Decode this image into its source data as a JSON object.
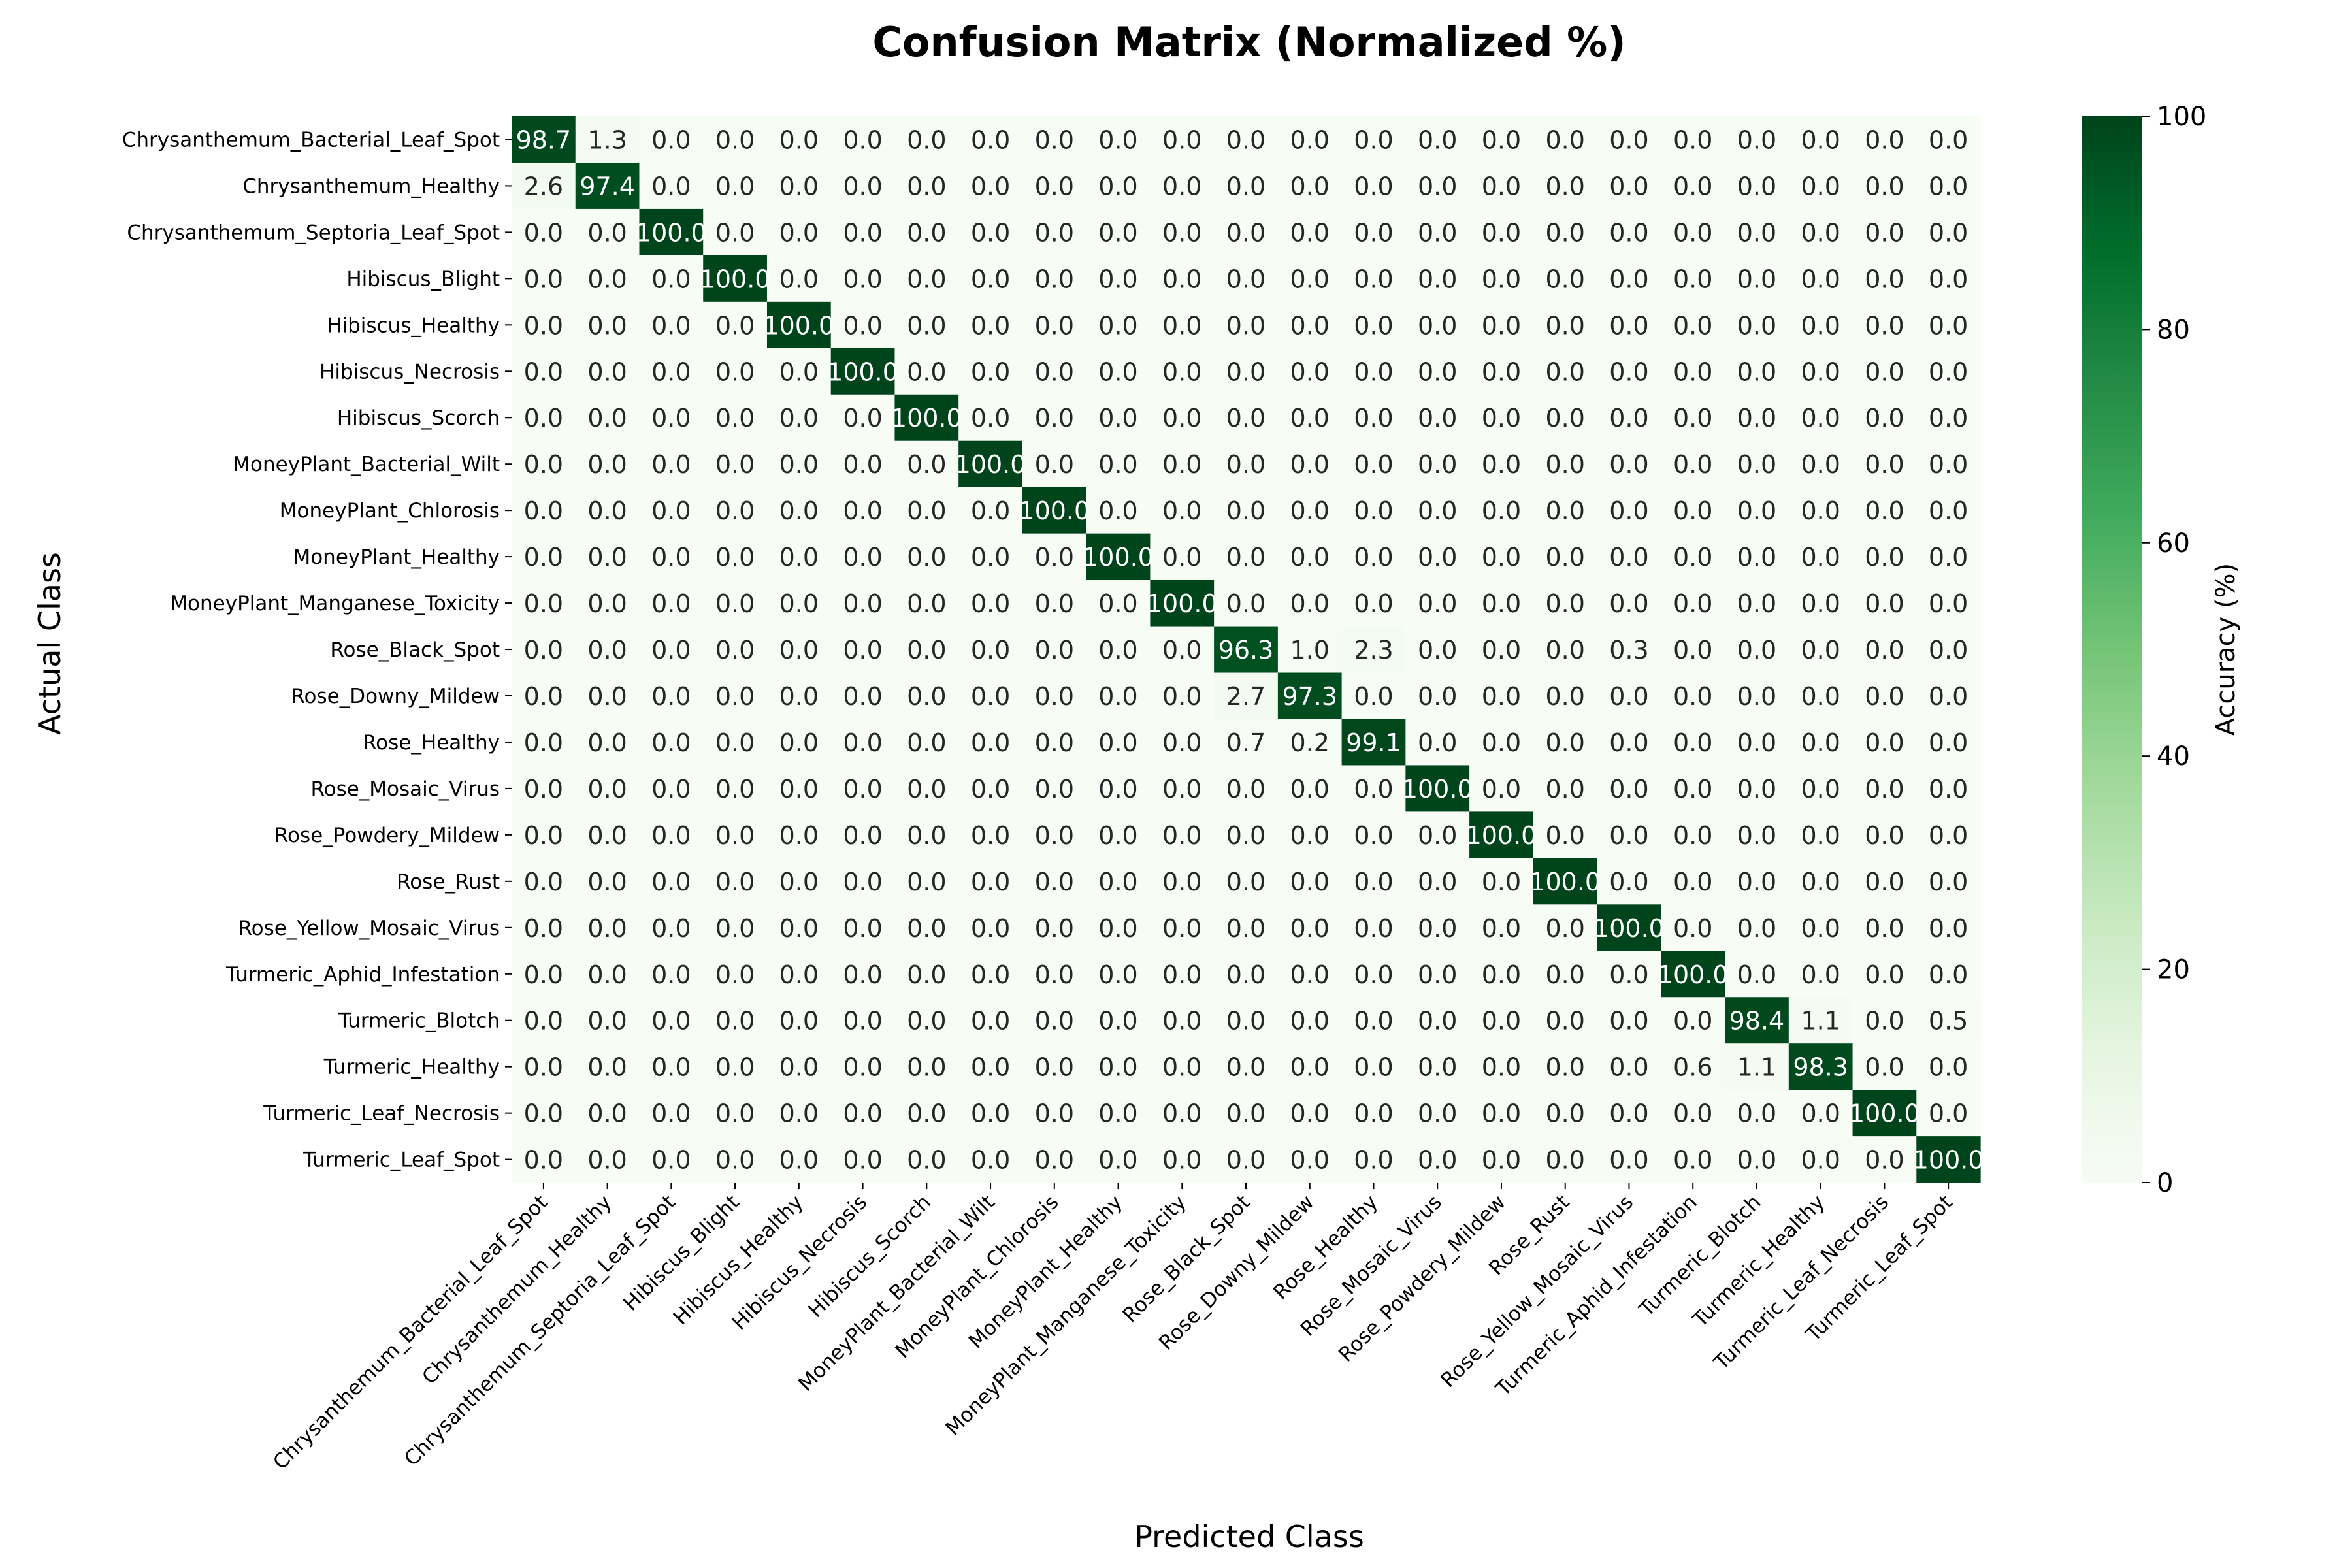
{
  "chart_data": {
    "type": "heatmap",
    "title": "Confusion Matrix (Normalized %)",
    "xlabel": "Predicted Class",
    "ylabel": "Actual Class",
    "colorbar_label": "Accuracy (%)",
    "colorbar_ticks": [
      "0",
      "20",
      "40",
      "60",
      "80",
      "100"
    ],
    "vmin": 0,
    "vmax": 100,
    "colormap": [
      "#f7fcf5",
      "#e5f5e0",
      "#c7e9c0",
      "#a1d99b",
      "#74c476",
      "#41ab5d",
      "#238b45",
      "#006d2c",
      "#00441b"
    ],
    "classes": [
      "Chrysanthemum_Bacterial_Leaf_Spot",
      "Chrysanthemum_Healthy",
      "Chrysanthemum_Septoria_Leaf_Spot",
      "Hibiscus_Blight",
      "Hibiscus_Healthy",
      "Hibiscus_Necrosis",
      "Hibiscus_Scorch",
      "MoneyPlant_Bacterial_Wilt",
      "MoneyPlant_Chlorosis",
      "MoneyPlant_Healthy",
      "MoneyPlant_Manganese_Toxicity",
      "Rose_Black_Spot",
      "Rose_Downy_Mildew",
      "Rose_Healthy",
      "Rose_Mosaic_Virus",
      "Rose_Powdery_Mildew",
      "Rose_Rust",
      "Rose_Yellow_Mosaic_Virus",
      "Turmeric_Aphid_Infestation",
      "Turmeric_Blotch",
      "Turmeric_Healthy",
      "Turmeric_Leaf_Necrosis",
      "Turmeric_Leaf_Spot"
    ],
    "matrix": [
      [
        98.7,
        1.3,
        0,
        0,
        0,
        0,
        0,
        0,
        0,
        0,
        0,
        0,
        0,
        0,
        0,
        0,
        0,
        0,
        0,
        0,
        0,
        0,
        0
      ],
      [
        2.6,
        97.4,
        0,
        0,
        0,
        0,
        0,
        0,
        0,
        0,
        0,
        0,
        0,
        0,
        0,
        0,
        0,
        0,
        0,
        0,
        0,
        0,
        0
      ],
      [
        0,
        0,
        100,
        0,
        0,
        0,
        0,
        0,
        0,
        0,
        0,
        0,
        0,
        0,
        0,
        0,
        0,
        0,
        0,
        0,
        0,
        0,
        0
      ],
      [
        0,
        0,
        0,
        100,
        0,
        0,
        0,
        0,
        0,
        0,
        0,
        0,
        0,
        0,
        0,
        0,
        0,
        0,
        0,
        0,
        0,
        0,
        0
      ],
      [
        0,
        0,
        0,
        0,
        100,
        0,
        0,
        0,
        0,
        0,
        0,
        0,
        0,
        0,
        0,
        0,
        0,
        0,
        0,
        0,
        0,
        0,
        0
      ],
      [
        0,
        0,
        0,
        0,
        0,
        100,
        0,
        0,
        0,
        0,
        0,
        0,
        0,
        0,
        0,
        0,
        0,
        0,
        0,
        0,
        0,
        0,
        0
      ],
      [
        0,
        0,
        0,
        0,
        0,
        0,
        100,
        0,
        0,
        0,
        0,
        0,
        0,
        0,
        0,
        0,
        0,
        0,
        0,
        0,
        0,
        0,
        0
      ],
      [
        0,
        0,
        0,
        0,
        0,
        0,
        0,
        100,
        0,
        0,
        0,
        0,
        0,
        0,
        0,
        0,
        0,
        0,
        0,
        0,
        0,
        0,
        0
      ],
      [
        0,
        0,
        0,
        0,
        0,
        0,
        0,
        0,
        100,
        0,
        0,
        0,
        0,
        0,
        0,
        0,
        0,
        0,
        0,
        0,
        0,
        0,
        0
      ],
      [
        0,
        0,
        0,
        0,
        0,
        0,
        0,
        0,
        0,
        100,
        0,
        0,
        0,
        0,
        0,
        0,
        0,
        0,
        0,
        0,
        0,
        0,
        0
      ],
      [
        0,
        0,
        0,
        0,
        0,
        0,
        0,
        0,
        0,
        0,
        100,
        0,
        0,
        0,
        0,
        0,
        0,
        0,
        0,
        0,
        0,
        0,
        0
      ],
      [
        0,
        0,
        0,
        0,
        0,
        0,
        0,
        0,
        0,
        0,
        0,
        96.3,
        1.0,
        2.3,
        0,
        0,
        0,
        0.3,
        0,
        0,
        0,
        0,
        0
      ],
      [
        0,
        0,
        0,
        0,
        0,
        0,
        0,
        0,
        0,
        0,
        0,
        2.7,
        97.3,
        0,
        0,
        0,
        0,
        0,
        0,
        0,
        0,
        0,
        0
      ],
      [
        0,
        0,
        0,
        0,
        0,
        0,
        0,
        0,
        0,
        0,
        0,
        0.7,
        0.2,
        99.1,
        0,
        0,
        0,
        0,
        0,
        0,
        0,
        0,
        0
      ],
      [
        0,
        0,
        0,
        0,
        0,
        0,
        0,
        0,
        0,
        0,
        0,
        0,
        0,
        0,
        100,
        0,
        0,
        0,
        0,
        0,
        0,
        0,
        0
      ],
      [
        0,
        0,
        0,
        0,
        0,
        0,
        0,
        0,
        0,
        0,
        0,
        0,
        0,
        0,
        0,
        100,
        0,
        0,
        0,
        0,
        0,
        0,
        0
      ],
      [
        0,
        0,
        0,
        0,
        0,
        0,
        0,
        0,
        0,
        0,
        0,
        0,
        0,
        0,
        0,
        0,
        100,
        0,
        0,
        0,
        0,
        0,
        0
      ],
      [
        0,
        0,
        0,
        0,
        0,
        0,
        0,
        0,
        0,
        0,
        0,
        0,
        0,
        0,
        0,
        0,
        0,
        100,
        0,
        0,
        0,
        0,
        0
      ],
      [
        0,
        0,
        0,
        0,
        0,
        0,
        0,
        0,
        0,
        0,
        0,
        0,
        0,
        0,
        0,
        0,
        0,
        0,
        100,
        0,
        0,
        0,
        0
      ],
      [
        0,
        0,
        0,
        0,
        0,
        0,
        0,
        0,
        0,
        0,
        0,
        0,
        0,
        0,
        0,
        0,
        0,
        0,
        0,
        98.4,
        1.1,
        0,
        0.5
      ],
      [
        0,
        0,
        0,
        0,
        0,
        0,
        0,
        0,
        0,
        0,
        0,
        0,
        0,
        0,
        0,
        0,
        0,
        0,
        0.6,
        1.1,
        98.3,
        0,
        0
      ],
      [
        0,
        0,
        0,
        0,
        0,
        0,
        0,
        0,
        0,
        0,
        0,
        0,
        0,
        0,
        0,
        0,
        0,
        0,
        0,
        0,
        0,
        100,
        0
      ],
      [
        0,
        0,
        0,
        0,
        0,
        0,
        0,
        0,
        0,
        0,
        0,
        0,
        0,
        0,
        0,
        0,
        0,
        0,
        0,
        0,
        0,
        0,
        100
      ]
    ],
    "value_format_decimals": 1,
    "grid": false
  }
}
